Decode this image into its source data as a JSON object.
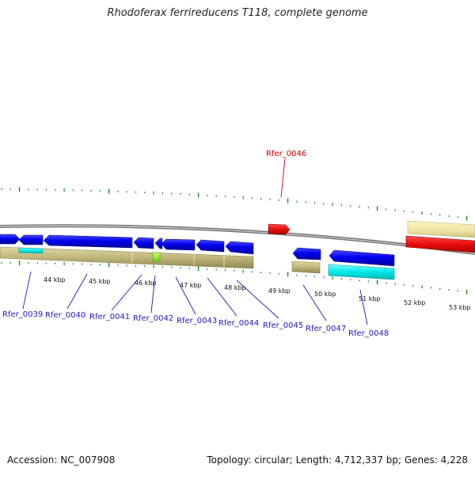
{
  "title": "Rhodoferax ferrireducens T118, complete genome",
  "footer": {
    "accession": "Accession: NC_007908",
    "summary": "Topology: circular; Length: 4,712,337 bp; Genes: 4,228"
  },
  "colors": {
    "forward_gene": "#0000ee",
    "highlight_gene": "#ee1010",
    "rna_feature": "#00e8e8",
    "misc_feature": "#bdb57a",
    "misc_feature_light": "#efe4a4",
    "tick": "#1f8a1f",
    "backbone": "#7a7a7a",
    "label_blue": "#1a1ab8",
    "label_red": "#cc0000"
  },
  "scale": {
    "unit": "kbp",
    "labels": [
      "44 kbp",
      "45 kbp",
      "46 kbp",
      "47 kbp",
      "48 kbp",
      "49 kbp",
      "50 kbp",
      "51 kbp",
      "52 kbp",
      "53 kbp"
    ]
  },
  "gene_labels": [
    {
      "name": "Rfer_0039",
      "highlight": false
    },
    {
      "name": "Rfer_0040",
      "highlight": false
    },
    {
      "name": "Rfer_0041",
      "highlight": false
    },
    {
      "name": "Rfer_0042",
      "highlight": false
    },
    {
      "name": "Rfer_0043",
      "highlight": false
    },
    {
      "name": "Rfer_0044",
      "highlight": false
    },
    {
      "name": "Rfer_0045",
      "highlight": false
    },
    {
      "name": "Rfer_0046",
      "highlight": true
    },
    {
      "name": "Rfer_0047",
      "highlight": false
    },
    {
      "name": "Rfer_0048",
      "highlight": false
    }
  ]
}
